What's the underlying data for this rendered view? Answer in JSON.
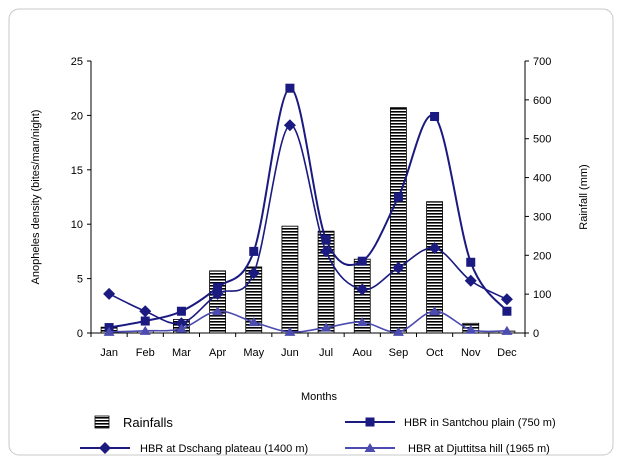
{
  "chart_data": {
    "type": "bar+line",
    "categories": [
      "Jan",
      "Feb",
      "Mar",
      "Apr",
      "May",
      "Jun",
      "Jul",
      "Aou",
      "Sep",
      "Oct",
      "Nov",
      "Dec"
    ],
    "xlabel": "Months",
    "ylabel_left": "Anopheles density (bites/man/night)",
    "ylabel_right": "Rainfall (mm)",
    "ylim_left": [
      0,
      25
    ],
    "ylim_right": [
      0,
      700
    ],
    "yticks_left": [
      0,
      5,
      10,
      15,
      20,
      25
    ],
    "yticks_right": [
      0,
      100,
      200,
      300,
      400,
      500,
      600,
      700
    ],
    "grid": false,
    "bars": {
      "name": "Rainfalls",
      "axis": "right",
      "values": [
        15,
        5,
        35,
        160,
        170,
        275,
        262,
        190,
        580,
        338,
        25,
        5
      ]
    },
    "series": [
      {
        "name": "HBR in Santchou plain (750 m)",
        "axis": "left",
        "marker": "square",
        "color": "#1a1a80",
        "values": [
          0.5,
          1.1,
          2.0,
          4.2,
          7.5,
          22.5,
          8.6,
          6.6,
          12.5,
          19.9,
          6.5,
          2.0
        ]
      },
      {
        "name": "HBR at Dschang plateau (1400 m)",
        "axis": "left",
        "marker": "diamond",
        "color": "#1a1a80",
        "values": [
          3.6,
          2.0,
          0.9,
          3.6,
          5.5,
          19.1,
          7.5,
          4.0,
          6.0,
          7.8,
          4.8,
          3.1
        ]
      },
      {
        "name": "HBR at Djuttitsa hill (1965 m)",
        "axis": "left",
        "marker": "triangle",
        "color": "#4b4bb0",
        "values": [
          0.1,
          0.2,
          0.4,
          2.0,
          1.0,
          0.1,
          0.5,
          1.0,
          0.1,
          2.0,
          0.3,
          0.2
        ]
      }
    ],
    "legend": "bottom"
  }
}
